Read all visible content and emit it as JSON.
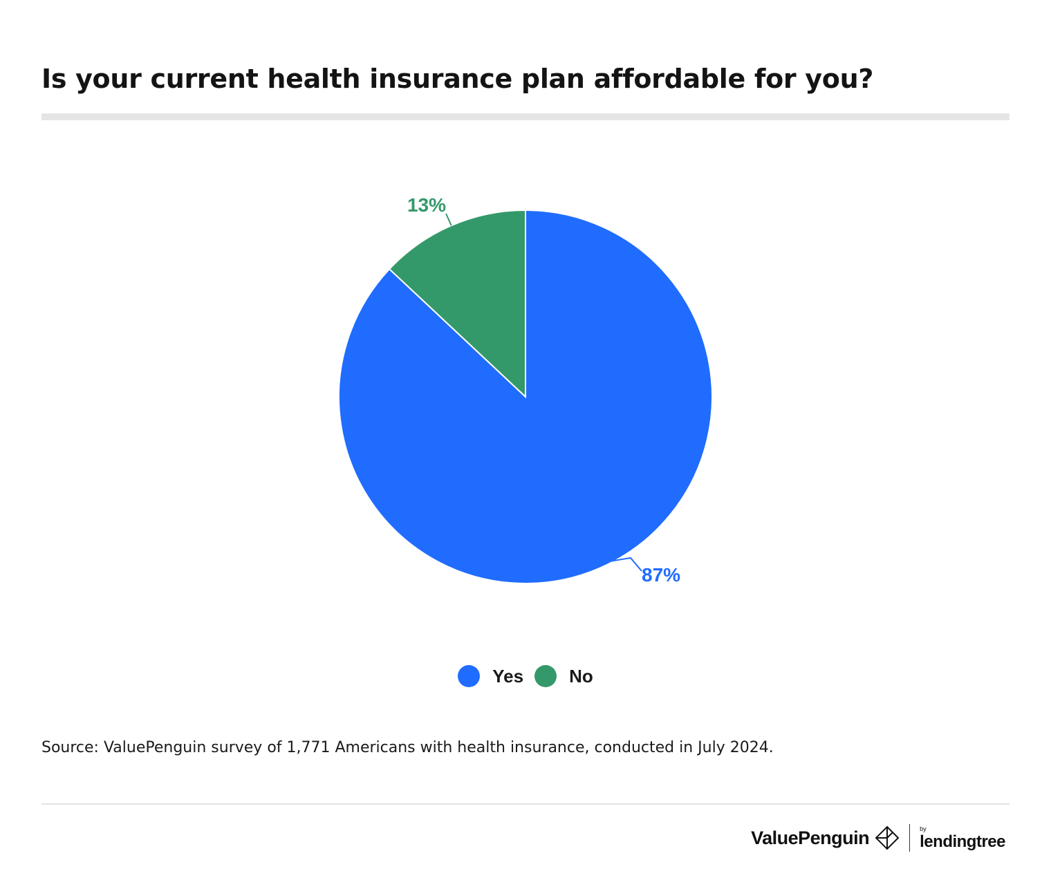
{
  "title": "Is your current health insurance plan affordable for you?",
  "chart_data": {
    "type": "pie",
    "title": "Is your current health insurance plan affordable for you?",
    "slices": [
      {
        "label": "Yes",
        "value": 87,
        "display": "87%",
        "color": "#206cff"
      },
      {
        "label": "No",
        "value": 13,
        "display": "13%",
        "color": "#34996a"
      }
    ],
    "start_angle_deg": 0,
    "direction": "clockwise",
    "legend_position": "bottom-center"
  },
  "source": "Source: ValuePenguin survey of 1,771 Americans with health insurance, conducted in July 2024.",
  "branding": {
    "name": "ValuePenguin",
    "by": "by",
    "partner": "lendingtree"
  }
}
